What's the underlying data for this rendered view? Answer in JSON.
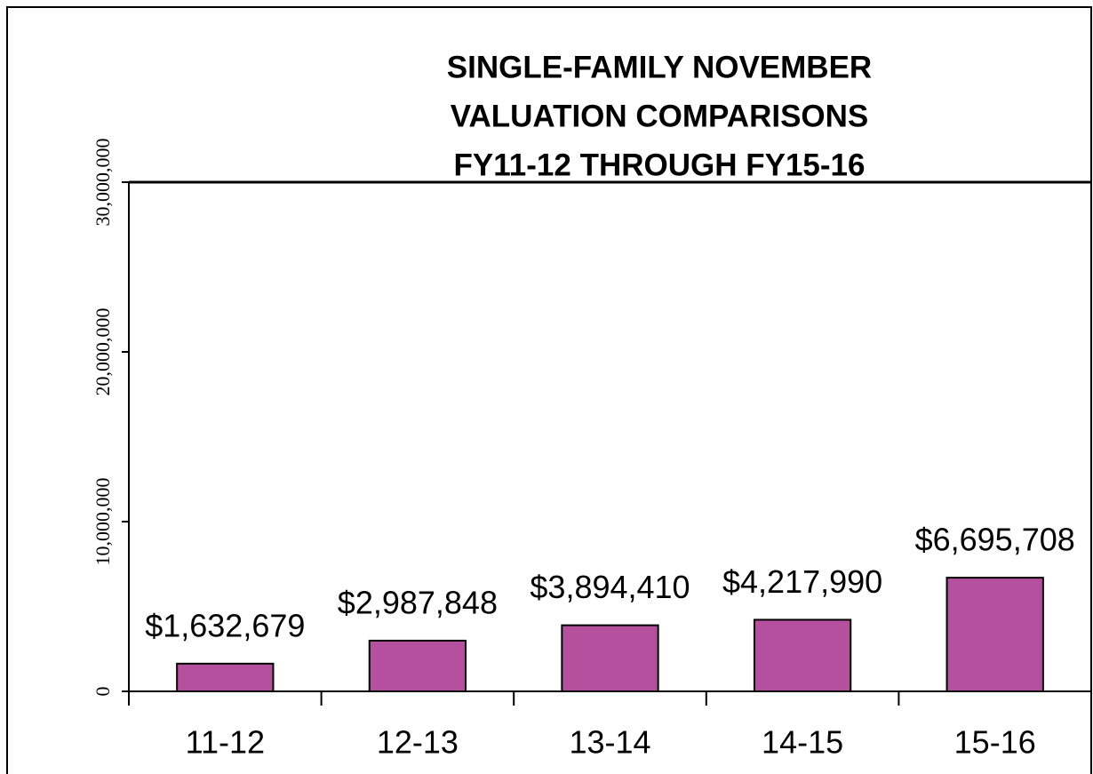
{
  "chart_data": {
    "type": "bar",
    "title": [
      "SINGLE-FAMILY NOVEMBER",
      "VALUATION COMPARISONS",
      "FY11-12 THROUGH FY15-16"
    ],
    "categories": [
      "11-12",
      "12-13",
      "13-14",
      "14-15",
      "15-16"
    ],
    "values": [
      1632679,
      2987848,
      3894410,
      4217990,
      6695708
    ],
    "value_labels": [
      "$1,632,679",
      "$2,987,848",
      "$3,894,410",
      "$4,217,990",
      "$6,695,708"
    ],
    "color": "#b5509f",
    "ylim": [
      0,
      30000000
    ],
    "yticks": [
      0,
      {
        "value": 10000000,
        "label": "10,000,000"
      },
      {
        "value": 20000000,
        "label": "20,000,000"
      },
      {
        "value": 30000000,
        "label": "30,000,000"
      }
    ],
    "grid": false
  }
}
